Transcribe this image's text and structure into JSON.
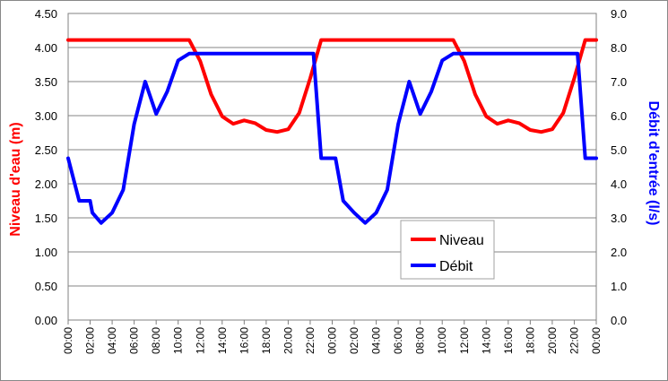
{
  "chart_data": {
    "type": "line",
    "title": "",
    "xlabel": "",
    "ylabel": "Niveau d'eau (m)",
    "y2label": "Débit d'entrée (l/s)",
    "ylim": [
      0,
      4.5
    ],
    "y2lim": [
      0,
      9
    ],
    "yticks": [
      "0.00",
      "0.50",
      "1.00",
      "1.50",
      "2.00",
      "2.50",
      "3.00",
      "3.50",
      "4.00",
      "4.50"
    ],
    "y2ticks": [
      "0.0",
      "1.0",
      "2.0",
      "3.0",
      "4.0",
      "5.0",
      "6.0",
      "7.0",
      "8.0",
      "9.0"
    ],
    "x_tick_labels": [
      "00:00",
      "02:00",
      "04:00",
      "06:00",
      "08:00",
      "10:00",
      "12:00",
      "14:00",
      "16:00",
      "18:00",
      "20:00",
      "22:00",
      "00:00",
      "02:00",
      "04:00",
      "06:00",
      "08:00",
      "10:00",
      "12:00",
      "14:00",
      "16:00",
      "18:00",
      "20:00",
      "22:00",
      "00:00"
    ],
    "x_range_hours": [
      0,
      48
    ],
    "grid": true,
    "legend_placement": "center-right",
    "series": [
      {
        "name": "Niveau",
        "axis": "left",
        "color": "#ff0000",
        "x_hours": [
          0,
          1,
          2,
          3,
          4,
          5,
          6,
          7,
          8,
          9,
          10,
          11,
          12,
          13,
          14,
          15,
          16,
          17,
          18,
          19,
          20,
          21,
          22,
          23,
          24,
          25,
          26,
          27,
          28,
          29,
          30,
          31,
          32,
          33,
          34,
          35,
          36,
          37,
          38,
          39,
          40,
          41,
          42,
          43,
          44,
          45,
          46,
          47,
          48
        ],
        "values": [
          4.11,
          4.11,
          4.11,
          4.11,
          4.11,
          4.11,
          4.11,
          4.11,
          4.11,
          4.11,
          4.11,
          4.11,
          3.8,
          3.31,
          2.99,
          2.88,
          2.93,
          2.89,
          2.79,
          2.76,
          2.8,
          3.04,
          3.55,
          4.11,
          4.11,
          4.11,
          4.11,
          4.11,
          4.11,
          4.11,
          4.11,
          4.11,
          4.11,
          4.11,
          4.11,
          4.11,
          3.8,
          3.31,
          2.99,
          2.88,
          2.93,
          2.89,
          2.79,
          2.76,
          2.8,
          3.04,
          3.55,
          4.11,
          4.11
        ]
      },
      {
        "name": "Débit",
        "axis": "right",
        "color": "#0000ff",
        "x_hours": [
          0,
          1,
          2,
          2.2,
          3,
          4,
          5,
          6,
          7,
          8,
          9,
          10,
          11,
          11.5,
          12,
          13,
          14,
          15,
          16,
          17,
          18,
          19,
          20,
          21,
          22,
          22.3,
          23,
          24,
          24.3,
          25,
          26,
          27,
          28,
          29,
          30,
          31,
          32,
          33,
          34,
          35,
          35.5,
          36,
          37,
          38,
          39,
          40,
          41,
          42,
          43,
          44,
          45,
          46,
          46.3,
          47,
          48
        ],
        "values": [
          4.75,
          3.5,
          3.5,
          3.15,
          2.85,
          3.15,
          3.82,
          5.75,
          7.0,
          6.05,
          6.7,
          7.62,
          7.82,
          7.82,
          7.82,
          7.82,
          7.82,
          7.82,
          7.82,
          7.82,
          7.82,
          7.82,
          7.82,
          7.82,
          7.82,
          7.82,
          4.75,
          4.75,
          4.75,
          3.5,
          3.15,
          2.85,
          3.15,
          3.82,
          5.75,
          7.0,
          6.05,
          6.7,
          7.62,
          7.82,
          7.82,
          7.82,
          7.82,
          7.82,
          7.82,
          7.82,
          7.82,
          7.82,
          7.82,
          7.82,
          7.82,
          7.82,
          7.82,
          4.75,
          4.75
        ]
      }
    ]
  }
}
